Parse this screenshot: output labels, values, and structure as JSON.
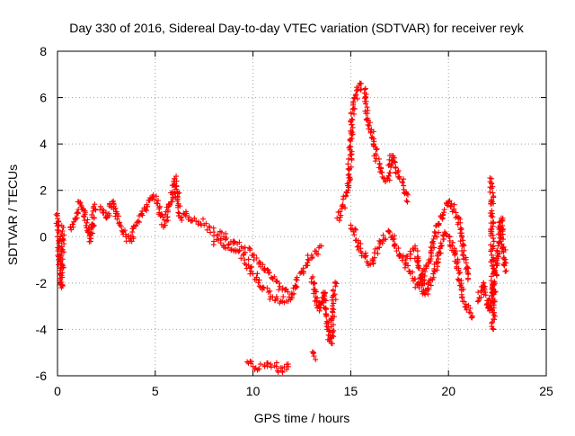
{
  "chart_data": {
    "type": "scatter",
    "title": "Day 330 of 2016, Sidereal Day-to-day VTEC variation (SDTVAR) for receiver reyk",
    "xlabel": "GPS time / hours",
    "ylabel": "SDTVAR / TECUs",
    "xlim": [
      0,
      25
    ],
    "ylim": [
      -6,
      8
    ],
    "xticks": [
      "0",
      "5",
      "10",
      "15",
      "20",
      "25"
    ],
    "yticks": [
      "-6",
      "-4",
      "-2",
      "0",
      "2",
      "4",
      "6",
      "8"
    ],
    "grid": true,
    "marker": "+",
    "color": "#ff0000",
    "series": [
      {
        "name": "SDTVAR",
        "traces": [
          {
            "x": [
              0.0,
              0.05,
              0.1,
              0.15,
              0.2,
              0.25,
              0.3
            ],
            "y": [
              1.0,
              0.2,
              -0.8,
              -1.6,
              -2.2,
              -1.2,
              0.4
            ]
          },
          {
            "x": [
              0.7,
              0.9,
              1.1,
              1.3,
              1.5,
              1.7,
              1.9
            ],
            "y": [
              0.3,
              0.8,
              1.5,
              1.2,
              0.6,
              -0.2,
              1.4
            ]
          },
          {
            "x": [
              2.2,
              2.5,
              2.8,
              3.0,
              3.2,
              3.5,
              3.8,
              4.0,
              4.3,
              4.6,
              4.9,
              5.2,
              5.5,
              5.8,
              6.0,
              6.3,
              6.6,
              6.9
            ],
            "y": [
              1.3,
              0.8,
              1.5,
              1.0,
              0.5,
              0.0,
              -0.2,
              0.5,
              1.0,
              1.3,
              1.8,
              1.2,
              0.5,
              1.5,
              2.5,
              0.8,
              1.0,
              0.7
            ]
          },
          {
            "x": [
              7.0,
              7.5,
              8.0,
              8.5,
              9.0,
              9.5,
              10.0,
              10.5,
              11.0,
              11.5,
              12.0
            ],
            "y": [
              0.8,
              0.5,
              0.2,
              0.0,
              -0.3,
              -0.5,
              -0.8,
              -1.2,
              -1.8,
              -2.3,
              -2.5
            ]
          },
          {
            "x": [
              8.0,
              8.5,
              9.0,
              9.5,
              10.0,
              10.5,
              11.0,
              11.5,
              12.0,
              12.5,
              13.0,
              13.5
            ],
            "y": [
              -0.2,
              -0.4,
              -0.6,
              -0.8,
              -1.6,
              -2.2,
              -2.6,
              -2.8,
              -2.5,
              -1.5,
              -0.8,
              -0.4
            ]
          },
          {
            "x": [
              9.7,
              10.0,
              10.3,
              10.6,
              10.9,
              11.2,
              11.5,
              11.8
            ],
            "y": [
              -5.4,
              -5.6,
              -5.7,
              -5.6,
              -5.5,
              -5.6,
              -5.8,
              -5.5
            ]
          },
          {
            "x": [
              13.0,
              13.2,
              13.4,
              13.6,
              13.8,
              14.0,
              14.2
            ],
            "y": [
              -1.8,
              -2.6,
              -3.2,
              -2.4,
              -4.0,
              -4.6,
              -2.0
            ]
          },
          {
            "x": [
              13.1,
              13.2
            ],
            "y": [
              -5.0,
              -5.3
            ]
          },
          {
            "x": [
              14.3,
              14.6,
              14.9,
              15.1,
              15.3,
              15.5,
              15.7,
              15.9,
              16.1,
              16.3,
              16.5,
              16.7,
              16.9,
              17.1,
              17.3,
              17.5,
              17.7,
              17.9
            ],
            "y": [
              0.8,
              1.3,
              2.2,
              5.5,
              6.3,
              6.6,
              6.2,
              5.0,
              4.3,
              3.5,
              2.8,
              2.5,
              2.5,
              3.5,
              3.0,
              2.5,
              2.2,
              1.5
            ]
          },
          {
            "x": [
              15.0,
              15.5,
              16.0,
              16.5,
              17.0,
              17.5,
              18.0,
              18.5,
              19.0,
              19.5,
              20.0,
              20.5,
              21.0
            ],
            "y": [
              0.5,
              -0.5,
              -1.2,
              -0.3,
              0.2,
              -0.8,
              -1.5,
              -2.2,
              -1.0,
              0.5,
              1.5,
              0.8,
              -1.8
            ]
          },
          {
            "x": [
              17.8,
              18.3,
              18.8,
              19.3,
              19.8,
              20.3,
              20.8,
              21.2
            ],
            "y": [
              -1.0,
              -0.5,
              -2.5,
              -1.5,
              0.2,
              -0.5,
              -2.8,
              -3.5
            ]
          },
          {
            "x": [
              21.5,
              21.8,
              22.1,
              22.3,
              22.5,
              22.7,
              22.9
            ],
            "y": [
              -2.8,
              -2.0,
              -3.2,
              -2.5,
              -0.8,
              0.8,
              -1.5
            ]
          },
          {
            "x": [
              22.2,
              22.3
            ],
            "y": [
              2.5,
              -4.0
            ]
          }
        ]
      }
    ]
  }
}
